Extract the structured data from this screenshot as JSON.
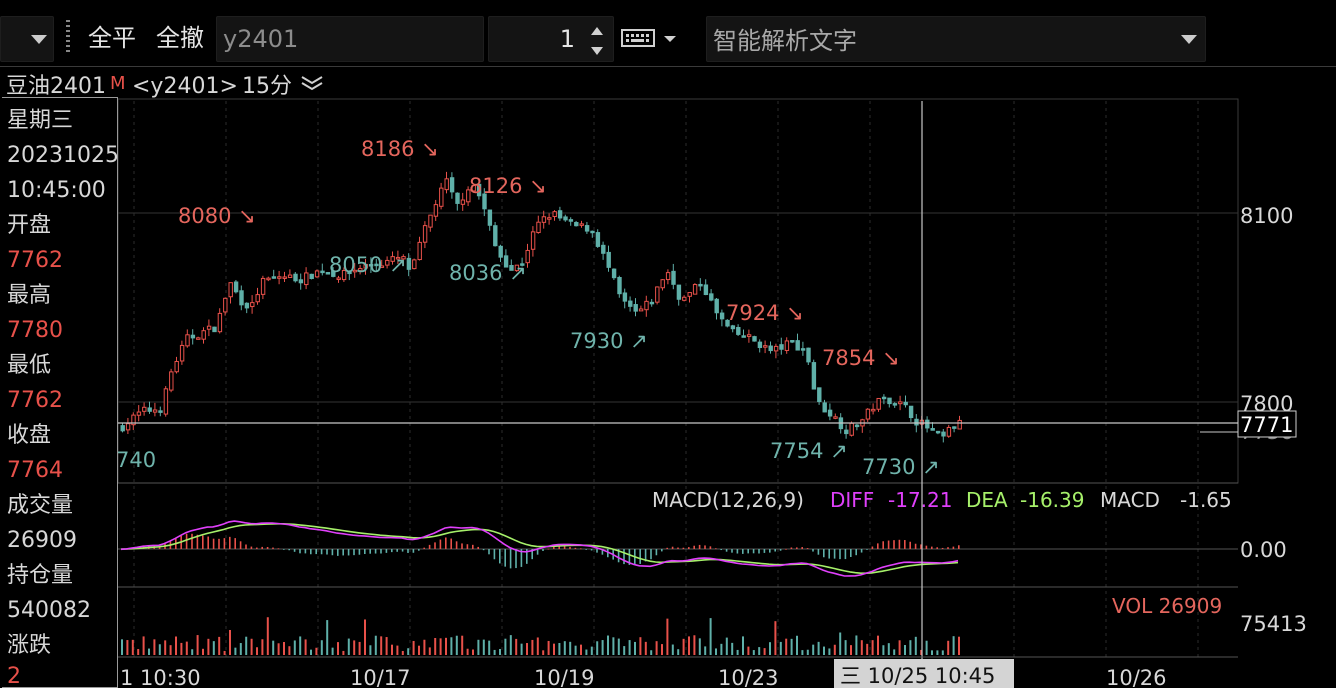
{
  "toolbar": {
    "close_all_label": "全平",
    "cancel_all_label": "全撤",
    "contract_code": "y2401",
    "quantity": "1",
    "smart_parse_placeholder": "智能解析文字"
  },
  "chart_header": {
    "contract_name": "豆油2401",
    "main_badge": "M",
    "code_tag": "<y2401>",
    "period": "15分"
  },
  "info_panel": {
    "weekday": "星期三",
    "date": "20231025",
    "time": "10:45:00",
    "open_label": "开盘",
    "open_value": "7762",
    "high_label": "最高",
    "high_value": "7780",
    "low_label": "最低",
    "low_value": "7762",
    "close_label": "收盘",
    "close_value": "7764",
    "volume_label": "成交量",
    "volume_value": "26909",
    "open_interest_label": "持仓量",
    "open_interest_value": "540082",
    "change_label": "涨跌",
    "change_value": "2"
  },
  "price_axis": {
    "labels": [
      "8100",
      "7800"
    ],
    "current_price": "7771",
    "crosshair_price": "7756"
  },
  "price_annotations": [
    {
      "text": "8080",
      "arrow": "↘",
      "kind": "high"
    },
    {
      "text": "8186",
      "arrow": "↘",
      "kind": "high"
    },
    {
      "text": "8126",
      "arrow": "↘",
      "kind": "high"
    },
    {
      "text": "8050",
      "arrow": "↗",
      "kind": "low"
    },
    {
      "text": "8036",
      "arrow": "↗",
      "kind": "low"
    },
    {
      "text": "7930",
      "arrow": "↗",
      "kind": "low"
    },
    {
      "text": "7924",
      "arrow": "↘",
      "kind": "high"
    },
    {
      "text": "7854",
      "arrow": "↘",
      "kind": "high"
    },
    {
      "text": "7754",
      "arrow": "↗",
      "kind": "low"
    },
    {
      "text": "7730",
      "arrow": "↗",
      "kind": "low"
    },
    {
      "text": "740",
      "arrow": "",
      "kind": "low"
    }
  ],
  "macd": {
    "title": "MACD(12,26,9)",
    "diff_label": "DIFF",
    "diff_value": "-17.21",
    "dea_label": "DEA",
    "dea_value": "-16.39",
    "macd_label": "MACD",
    "macd_value": "-1.65",
    "axis_label": "0.00"
  },
  "volume": {
    "label": "VOL 26909",
    "axis_label": "75413"
  },
  "time_axis": {
    "labels": [
      "1 10:30",
      "10/17",
      "10/19",
      "10/23",
      "10/26"
    ],
    "cursor_label": "三 10/25 10:45"
  },
  "colors": {
    "up": "#e8514a",
    "down": "#5fb0a9",
    "annotation_high": "#e4665d",
    "annotation_low": "#6fb3ab",
    "diff": "#e040fb",
    "dea": "#a6f06a",
    "grid": "#2a2a2a"
  },
  "icons": [
    "dropdown-caret-icon",
    "grip-icon",
    "spinner-up-icon",
    "spinner-down-icon",
    "keyboard-icon",
    "period-chevron-icon"
  ]
}
